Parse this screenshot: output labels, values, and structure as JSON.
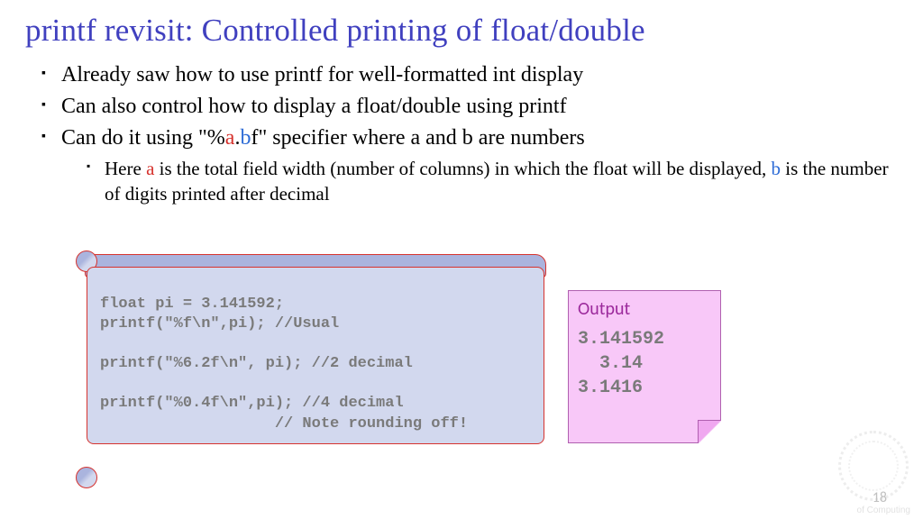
{
  "title": "printf revisit: Controlled printing of float/double",
  "bullets": {
    "b1": "Already saw how to use printf for well-formatted int display",
    "b2": "Can also control how to display a float/double using printf",
    "b3_pre": "Can do it using \"%",
    "b3_a": "a",
    "b3_dot": ".",
    "b3_b": "b",
    "b3_post": "f\" specifier where a and b are numbers",
    "sub_pre": "Here ",
    "sub_a": "a",
    "sub_mid1": " is the total field width (number of columns) in which the float will be displayed, ",
    "sub_b": "b",
    "sub_post": " is the number of digits printed after decimal"
  },
  "code": "float pi = 3.141592;\nprintf(\"%f\\n\",pi); //Usual\n\nprintf(\"%6.2f\\n\", pi); //2 decimal\n\nprintf(\"%0.4f\\n\",pi); //4 decimal\n                   // Note rounding off!",
  "output": {
    "label": "Output",
    "lines": "3.141592\n  3.14\n3.1416"
  },
  "page_number": "18",
  "watermark": "of Computing",
  "colors": {
    "title": "#4040bf",
    "code_bg": "#d2d8ee",
    "code_border": "#d6332e",
    "output_bg": "#f8c8f8",
    "red": "#d6332e",
    "blue": "#2e6cd6"
  }
}
